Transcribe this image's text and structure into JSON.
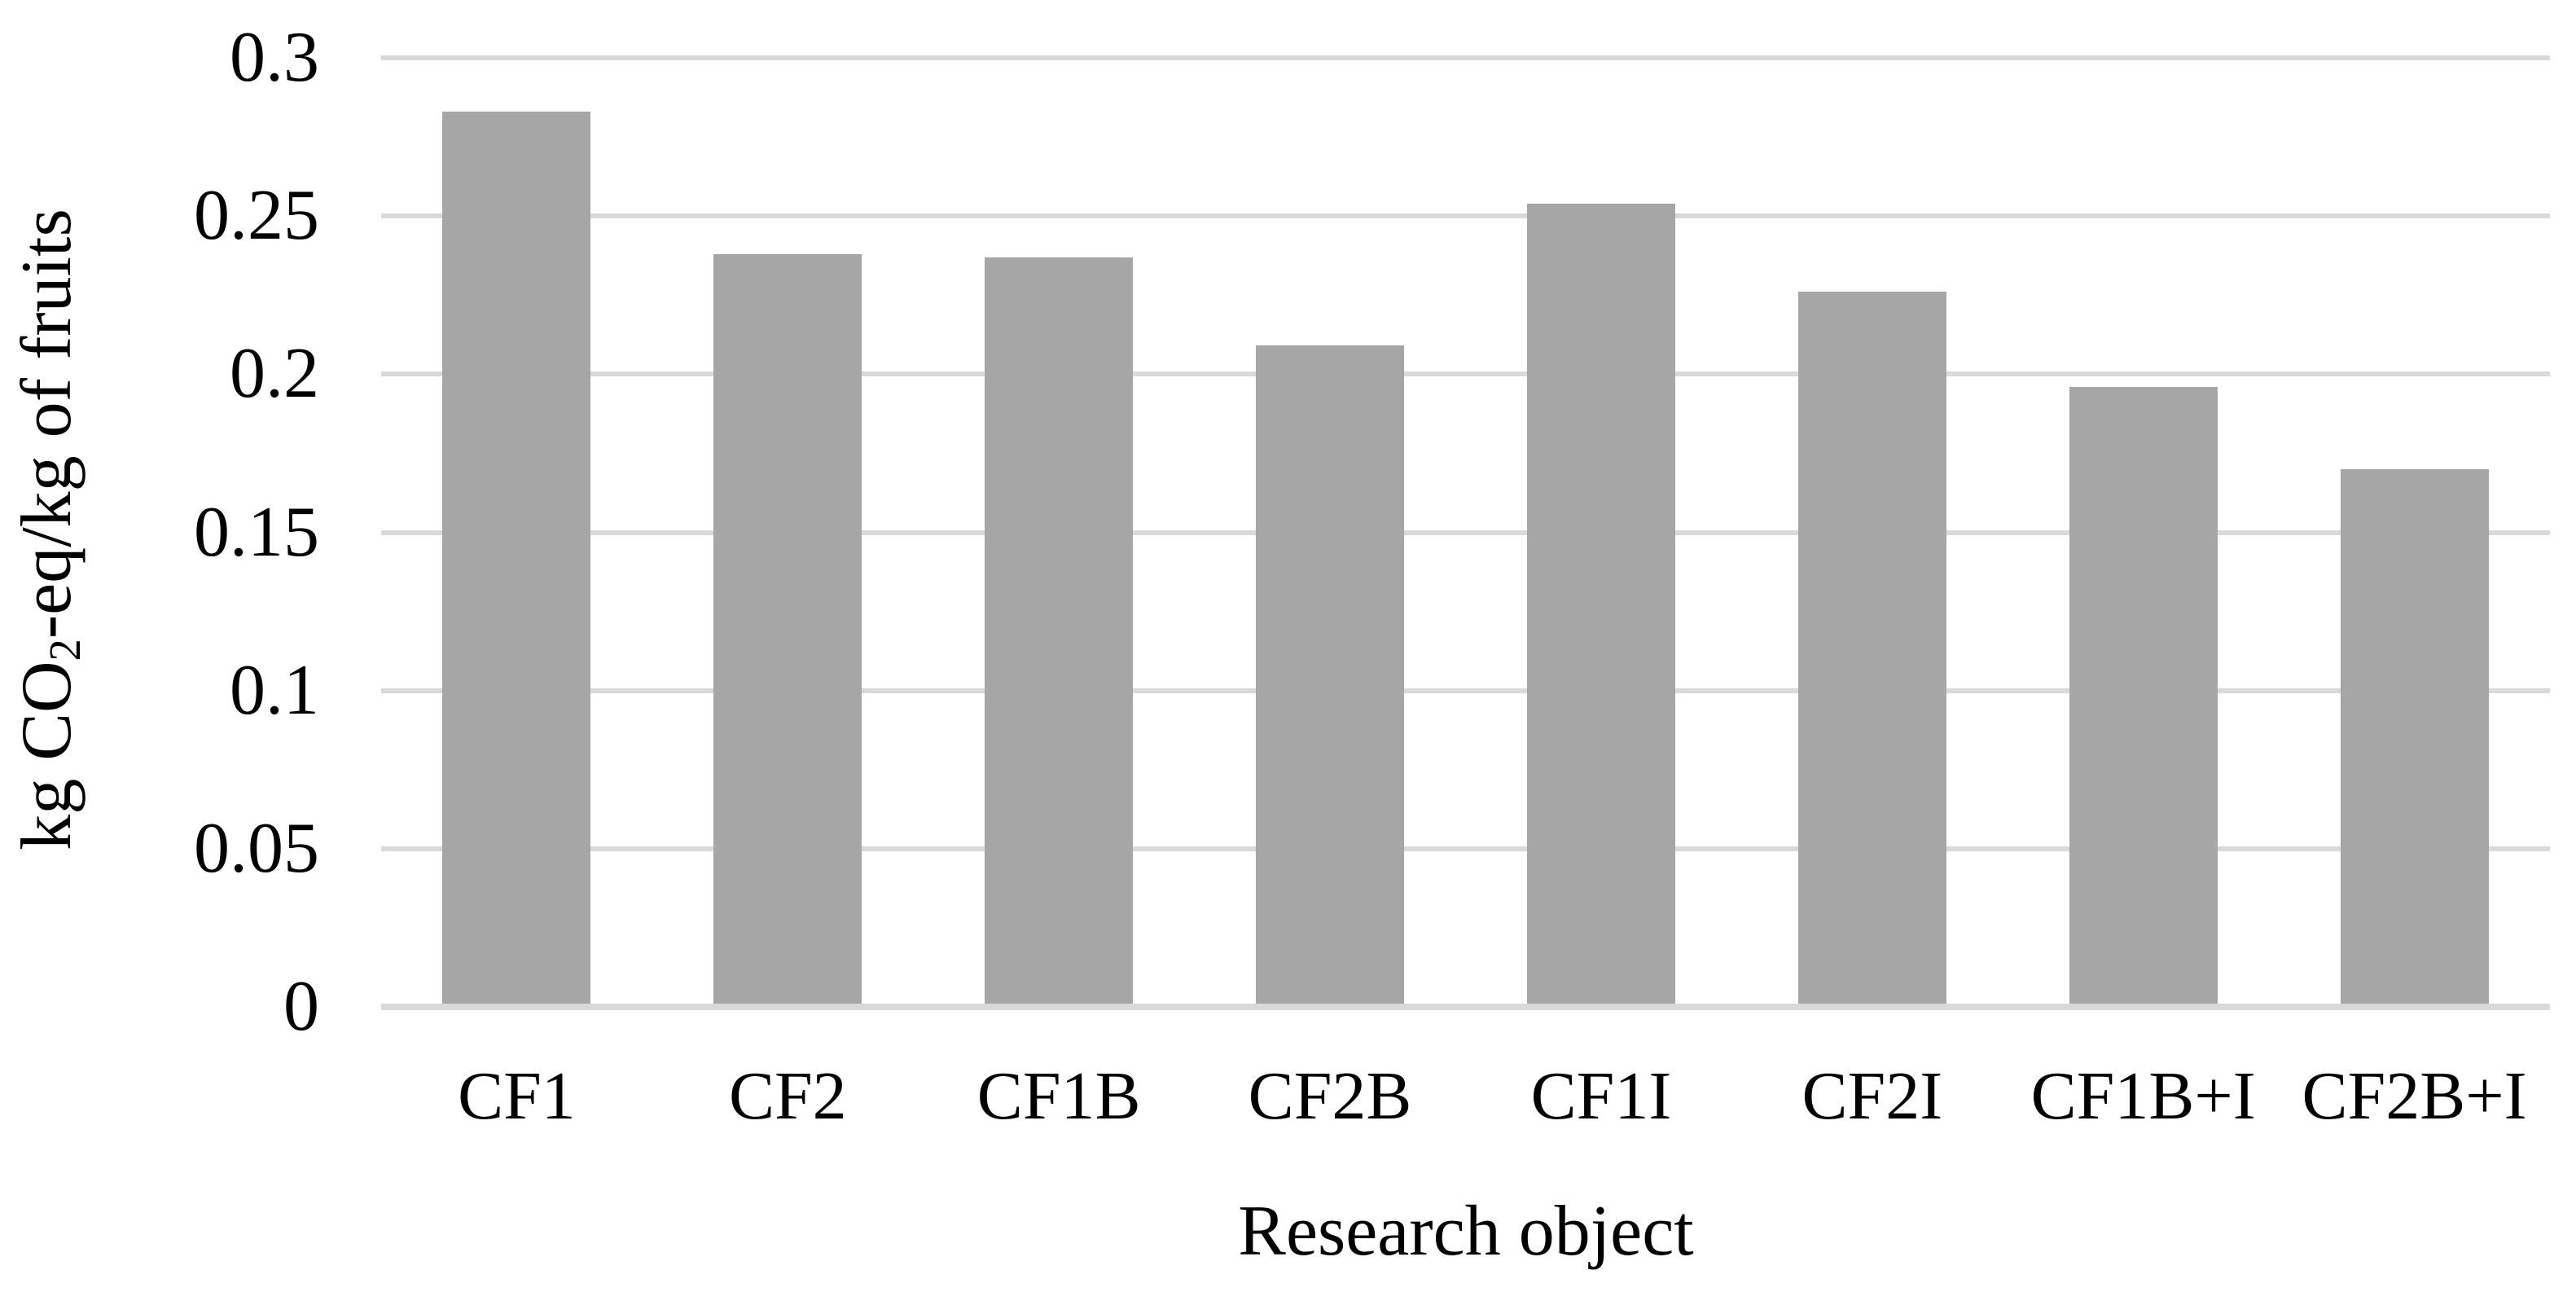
{
  "figure": {
    "y_axis": {
      "title_prefix": "kg CO",
      "title_sub": "2",
      "title_suffix": "-eq/kg of fruits",
      "tick_labels_ascending": [
        "0",
        "0.05",
        "0.1",
        "0.15",
        "0.2",
        "0.25",
        "0.3"
      ]
    },
    "x_axis": {
      "title": "Research object"
    }
  },
  "chart_data": {
    "type": "bar",
    "title": "",
    "categories": [
      "CF1",
      "CF2",
      "CF1B",
      "CF2B",
      "CF1I",
      "CF2I",
      "CF1B+I",
      "CF2B+I"
    ],
    "values": [
      0.283,
      0.238,
      0.237,
      0.209,
      0.254,
      0.226,
      0.196,
      0.17
    ],
    "xlabel": "Research object",
    "ylabel": "kg CO2-eq/kg of fruits",
    "ylim": [
      0,
      0.3
    ],
    "yticks": [
      0,
      0.05,
      0.1,
      0.15,
      0.2,
      0.25,
      0.3
    ],
    "grid": true,
    "legend": false,
    "bar_color": "#a6a6a6",
    "gridline_color": "#d9d9d9"
  }
}
